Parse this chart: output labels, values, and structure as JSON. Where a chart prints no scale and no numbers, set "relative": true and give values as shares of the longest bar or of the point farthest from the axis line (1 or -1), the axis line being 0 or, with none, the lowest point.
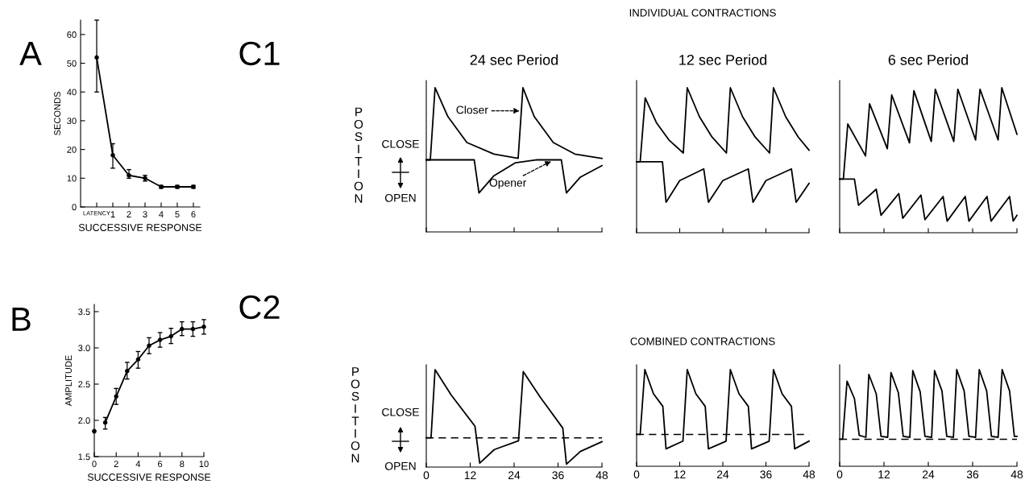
{
  "chart_data": [
    {
      "type": "line",
      "xlabel": "SUCCESSIVE RESPONSE",
      "ylabel": "SECONDS",
      "marker": "circle",
      "line_style": "solid",
      "categories": [
        "LATENCY",
        "1",
        "2",
        "3",
        "4",
        "5",
        "6"
      ],
      "series": [
        {
          "color": "#000000",
          "values": [
            52,
            18,
            11,
            10,
            7,
            7,
            7
          ],
          "errors": [
            [
              40,
              65
            ],
            [
              13.5,
              22
            ],
            [
              10,
              13
            ],
            [
              9,
              11
            ],
            [
              6.5,
              7.5
            ],
            [
              6.5,
              7.5
            ],
            [
              6.5,
              7.5
            ]
          ]
        }
      ],
      "ylim": [
        0,
        65
      ],
      "yticks": [
        0,
        10,
        20,
        30,
        40,
        50,
        60
      ],
      "annotations": [
        "A"
      ]
    },
    {
      "type": "line",
      "title": "24 sec Period",
      "ylabel": "POSITION",
      "relative": true,
      "tick_labels": false,
      "line_style": "solid",
      "xlim": [
        0,
        48
      ],
      "xticks": [
        0,
        12,
        24,
        36,
        48
      ],
      "series": [
        {
          "color": "#000000",
          "x": [
            0,
            1.1,
            2.4,
            5.9,
            11.1,
            18.5,
            25.1,
            26.4,
            29.5,
            34.7,
            40.6,
            48
          ],
          "values": [
            0.5,
            0.5,
            1.0,
            0.8,
            0.62,
            0.54,
            0.51,
            1.0,
            0.8,
            0.62,
            0.54,
            0.51
          ]
        },
        {
          "color": "#000000",
          "x": [
            0,
            13.1,
            14.4,
            18.5,
            24.4,
            30.3,
            36.9,
            38.3,
            42.1,
            48
          ],
          "values": [
            0.5,
            0.5,
            0.27,
            0.39,
            0.48,
            0.5,
            0.5,
            0.27,
            0.38,
            0.46
          ]
        }
      ],
      "annotations": [
        "C1",
        "CLOSE",
        "OPEN",
        {
          "text": "Closer",
          "x": 25.5,
          "y": 0.84
        },
        {
          "text": "Opener",
          "x": 34.1,
          "y": 0.49
        }
      ]
    },
    {
      "type": "line",
      "title": "12 sec Period",
      "relative": true,
      "tick_labels": false,
      "line_style": "solid",
      "xlim": [
        0,
        48
      ],
      "xticks": [
        0,
        12,
        24,
        36,
        48
      ],
      "series": [
        {
          "color": "#000000",
          "x": [
            0,
            1,
            2.4,
            5.5,
            9,
            13,
            14.1,
            17.5,
            21,
            25,
            26.1,
            29.5,
            33,
            37,
            38.1,
            41.5,
            45,
            48
          ],
          "values": [
            0.49,
            0.49,
            0.93,
            0.76,
            0.64,
            0.55,
            1.0,
            0.8,
            0.66,
            0.55,
            1.0,
            0.8,
            0.66,
            0.55,
            1.0,
            0.8,
            0.66,
            0.57
          ]
        },
        {
          "color": "#000000",
          "x": [
            0,
            7.2,
            8.2,
            12,
            18.7,
            20,
            24,
            31.1,
            32.4,
            36,
            43.1,
            44.4,
            48
          ],
          "values": [
            0.49,
            0.49,
            0.21,
            0.36,
            0.44,
            0.21,
            0.36,
            0.44,
            0.21,
            0.36,
            0.44,
            0.21,
            0.34
          ]
        }
      ],
      "annotations": [
        "INDIVIDUAL CONTRACTIONS"
      ]
    },
    {
      "type": "line",
      "title": "6 sec Period",
      "relative": true,
      "tick_labels": false,
      "line_style": "solid",
      "xlim": [
        0,
        48
      ],
      "xticks": [
        0,
        12,
        24,
        36,
        48
      ],
      "series": [
        {
          "color": "#000000",
          "x": [
            0,
            1,
            2.2,
            7.0,
            8.1,
            12.9,
            14.1,
            18.9,
            20.1,
            24.8,
            25.9,
            30.9,
            32.0,
            36.8,
            38.0,
            42.9,
            43.9,
            48
          ],
          "values": [
            0.37,
            0.37,
            0.75,
            0.53,
            0.89,
            0.58,
            0.95,
            0.62,
            0.98,
            0.63,
            0.99,
            0.63,
            0.99,
            0.64,
            0.99,
            0.64,
            1.0,
            0.68
          ]
        },
        {
          "color": "#000000",
          "x": [
            0,
            4.0,
            5.1,
            9.9,
            11.2,
            16.0,
            17.1,
            22.0,
            23.1,
            28.0,
            29.1,
            34.0,
            35.0,
            39.9,
            41.0,
            46.0,
            47.0,
            48
          ],
          "values": [
            0.37,
            0.37,
            0.19,
            0.3,
            0.12,
            0.27,
            0.1,
            0.26,
            0.09,
            0.25,
            0.08,
            0.25,
            0.08,
            0.25,
            0.08,
            0.25,
            0.08,
            0.12
          ]
        }
      ]
    },
    {
      "type": "line",
      "xlabel": "SUCCESSIVE RESPONSE",
      "ylabel": "AMPLITUDE",
      "marker": "circle",
      "line_style": "solid",
      "xlim": [
        0,
        10
      ],
      "xticks": [
        0,
        2,
        4,
        6,
        8,
        10
      ],
      "ylim": [
        1.5,
        3.6
      ],
      "yticks": [
        1.5,
        {
          "value": 2.0,
          "label": "2.0"
        },
        2.5,
        {
          "value": 3.0,
          "label": "3.0"
        },
        3.5
      ],
      "series": [
        {
          "color": "#000000",
          "x": [
            1,
            2,
            3,
            4,
            5,
            6,
            7,
            8,
            9,
            10
          ],
          "values": [
            1.97,
            2.33,
            2.68,
            2.84,
            3.03,
            3.11,
            3.16,
            3.26,
            3.26,
            3.29
          ],
          "errors": [
            [
              1.88,
              2.04
            ],
            [
              2.22,
              2.44
            ],
            [
              2.57,
              2.8
            ],
            [
              2.72,
              2.95
            ],
            [
              2.92,
              3.14
            ],
            [
              3.01,
              3.21
            ],
            [
              3.06,
              3.27
            ],
            [
              3.17,
              3.36
            ],
            [
              3.16,
              3.36
            ],
            [
              3.19,
              3.39
            ]
          ]
        },
        {
          "type": "scatter",
          "color": "#000000",
          "x": [
            0
          ],
          "values": [
            1.85
          ]
        }
      ],
      "annotations": [
        "B"
      ]
    },
    {
      "type": "line",
      "ylabel": "POSITION",
      "relative": true,
      "tick_labels": "x",
      "line_style": "solid",
      "xlim": [
        0,
        48
      ],
      "xticks": [
        0,
        12,
        24,
        36,
        48
      ],
      "series": [
        {
          "color": "#000000",
          "x": [
            0,
            1.3,
            2.4,
            6.8,
            13.3,
            14.6,
            18.6,
            25.2,
            26.5,
            31.1,
            37.3,
            38.3,
            42.1,
            48
          ],
          "values": [
            0.3,
            0.3,
            1.0,
            0.74,
            0.42,
            0.04,
            0.18,
            0.27,
            0.98,
            0.72,
            0.4,
            0.03,
            0.16,
            0.26
          ]
        }
      ],
      "ref_lines": [
        {
          "axis": "y",
          "value": 0.3,
          "line_style": "dashed",
          "color": "#000000"
        }
      ],
      "annotations": [
        "C2",
        "CLOSE",
        "OPEN"
      ]
    },
    {
      "type": "line",
      "relative": true,
      "tick_labels": "x",
      "line_style": "solid",
      "xlim": [
        0,
        48
      ],
      "xticks": [
        0,
        12,
        24,
        36,
        48
      ],
      "series": [
        {
          "color": "#000000",
          "x": [
            0,
            1.0,
            2.3,
            4.7,
            7.3,
            8.2,
            12.9,
            14.1,
            16.5,
            19.1,
            20.0,
            24.9,
            26.1,
            28.5,
            31.1,
            32.0,
            36.9,
            38.1,
            40.5,
            43.1,
            44.0,
            48
          ],
          "values": [
            0.33,
            0.33,
            1.0,
            0.75,
            0.62,
            0.18,
            0.26,
            1.0,
            0.75,
            0.62,
            0.18,
            0.26,
            1.0,
            0.75,
            0.62,
            0.18,
            0.26,
            1.0,
            0.75,
            0.62,
            0.18,
            0.26
          ]
        }
      ],
      "ref_lines": [
        {
          "axis": "y",
          "value": 0.33,
          "line_style": "dashed",
          "color": "#000000"
        }
      ],
      "annotations": [
        "COMBINED CONTRACTIONS"
      ]
    },
    {
      "type": "line",
      "relative": true,
      "tick_labels": "x",
      "line_style": "solid",
      "xlim": [
        0,
        48
      ],
      "xticks": [
        0,
        12,
        24,
        36,
        48
      ],
      "series": [
        {
          "color": "#000000",
          "x": [
            0,
            0.8,
            2.0,
            4.0,
            5.3,
            7.1,
            7.9,
            9.9,
            11.2,
            13.0,
            13.9,
            15.9,
            17.2,
            19.0,
            19.8,
            21.8,
            23.1,
            24.9,
            25.7,
            27.7,
            29.0,
            30.8,
            31.7,
            33.7,
            35.0,
            36.8,
            37.8,
            39.8,
            41.1,
            42.9,
            44.0,
            46.0,
            47.3,
            48
          ],
          "values": [
            0.28,
            0.28,
            0.88,
            0.7,
            0.32,
            0.3,
            0.95,
            0.75,
            0.31,
            0.3,
            0.97,
            0.76,
            0.31,
            0.3,
            0.99,
            0.77,
            0.31,
            0.3,
            0.99,
            0.78,
            0.31,
            0.3,
            1.0,
            0.78,
            0.31,
            0.3,
            1.0,
            0.78,
            0.31,
            0.3,
            1.0,
            0.78,
            0.31,
            0.31
          ]
        }
      ],
      "ref_lines": [
        {
          "axis": "y",
          "value": 0.28,
          "line_style": "dashed",
          "color": "#000000"
        }
      ]
    }
  ]
}
